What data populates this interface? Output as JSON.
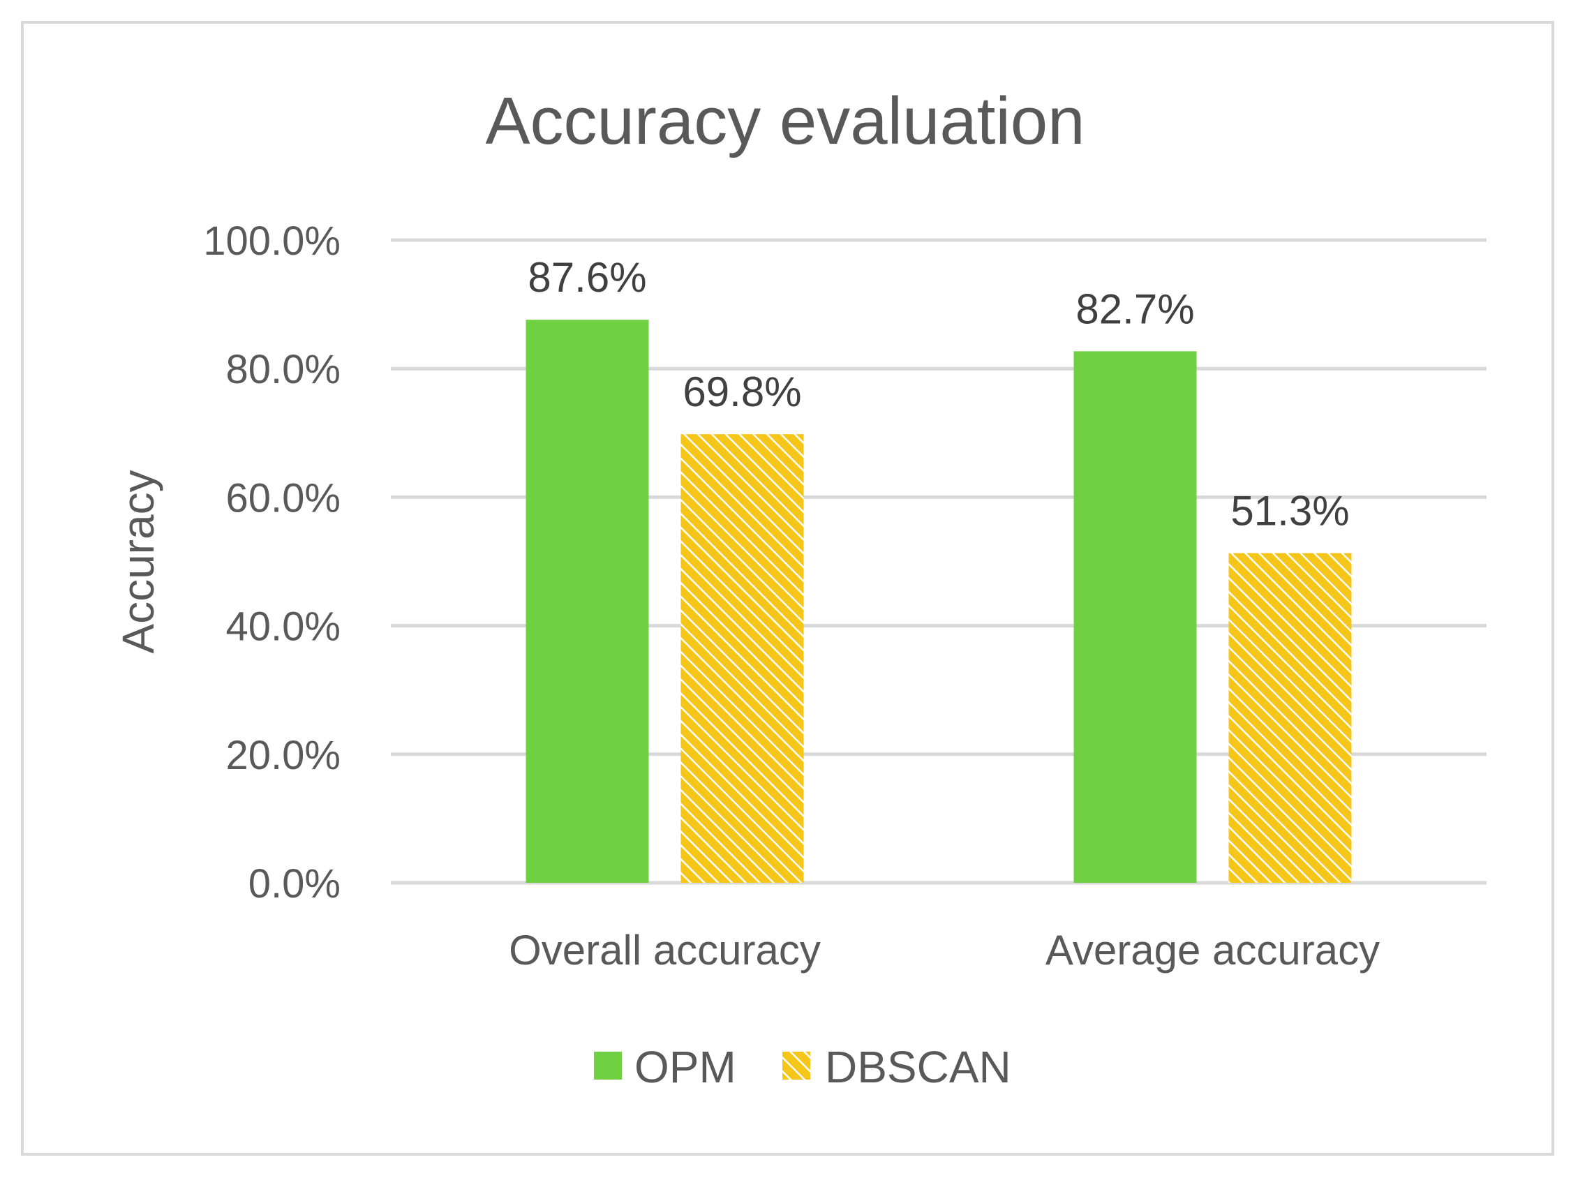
{
  "chart_data": {
    "type": "bar",
    "title": "Accuracy evaluation",
    "xlabel": "",
    "ylabel": "Accuracy",
    "ylim": [
      0,
      100
    ],
    "yticks": [
      0,
      20,
      40,
      60,
      80,
      100
    ],
    "ytick_labels": [
      "0.0%",
      "20.0%",
      "40.0%",
      "60.0%",
      "80.0%",
      "100.0%"
    ],
    "grid": true,
    "legend_position": "bottom",
    "categories": [
      "Overall accuracy",
      "Average accuracy"
    ],
    "series": [
      {
        "name": "OPM",
        "values": [
          87.6,
          82.7
        ],
        "value_labels": [
          "87.6%",
          "82.7%"
        ],
        "color": "#6fd142",
        "pattern": "solid"
      },
      {
        "name": "DBSCAN",
        "values": [
          69.8,
          51.3
        ],
        "value_labels": [
          "69.8%",
          "51.3%"
        ],
        "color": "#f5c518",
        "pattern": "diagonal-hatch"
      }
    ]
  },
  "colors": {
    "grid": "#d9d9d9",
    "text": "#595959",
    "label": "#404040",
    "frame": "#d9d9d9"
  }
}
